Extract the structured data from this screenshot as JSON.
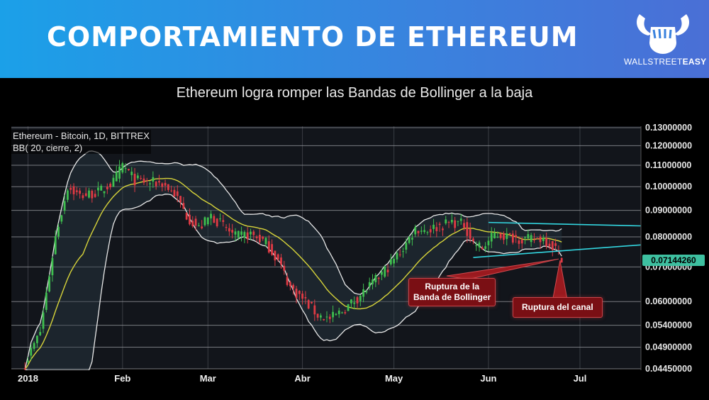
{
  "banner": {
    "title": "COMPORTAMIENTO DE ETHEREUM"
  },
  "logo": {
    "text_part1": "WALLSTREET",
    "text_part2": "EASY",
    "icon": "bull-fist-icon"
  },
  "subtitle": "Ethereum logra romper las Bandas de Bollinger a la baja",
  "legend": {
    "line1": "Ethereum - Bitcoin, 1D, BITTREX",
    "line2": "BB( 20, cierre, 2)"
  },
  "annotations": {
    "bollinger_break": {
      "line1": "Ruptura de la",
      "line2": "Banda de Bollinger"
    },
    "channel_break": "Ruptura del canal"
  },
  "colors": {
    "banner": "#2f8fe3",
    "up_candle": "#3fbf4f",
    "down_candle": "#e03a44",
    "middle_band": "#d7d43a",
    "outer_band": "#e8e8e8",
    "channel": "#33d6e0",
    "price_badge": "#3ec0a0",
    "annotation": "#7a0f14"
  },
  "chart_data": {
    "type": "candlestick",
    "title": "Ethereum - Bitcoin, 1D, BITTREX",
    "indicator": "BB( 20, cierre, 2)",
    "x_ticks": [
      "2018",
      "Feb",
      "Mar",
      "Abr",
      "May",
      "Jun",
      "Jul"
    ],
    "y_ticks": [
      "0.13000000",
      "0.12000000",
      "0.11000000",
      "0.10000000",
      "0.09000000",
      "0.08000000",
      "0.07000000",
      "0.06000000",
      "0.05400000",
      "0.04900000",
      "0.04450000"
    ],
    "last_price": "0.07144260",
    "close_path": [
      {
        "date": "2017-12-31",
        "close": 0.0455
      },
      {
        "date": "2018-01-05",
        "close": 0.0525
      },
      {
        "date": "2018-01-10",
        "close": 0.08
      },
      {
        "date": "2018-01-14",
        "close": 0.1
      },
      {
        "date": "2018-01-18",
        "close": 0.096
      },
      {
        "date": "2018-01-24",
        "close": 0.0975
      },
      {
        "date": "2018-01-29",
        "close": 0.102
      },
      {
        "date": "2018-02-01",
        "close": 0.11
      },
      {
        "date": "2018-02-05",
        "close": 0.103
      },
      {
        "date": "2018-02-09",
        "close": 0.102
      },
      {
        "date": "2018-02-14",
        "close": 0.1015
      },
      {
        "date": "2018-02-18",
        "close": 0.097
      },
      {
        "date": "2018-02-22",
        "close": 0.088
      },
      {
        "date": "2018-02-26",
        "close": 0.083
      },
      {
        "date": "2018-03-02",
        "close": 0.088
      },
      {
        "date": "2018-03-06",
        "close": 0.084
      },
      {
        "date": "2018-03-10",
        "close": 0.08
      },
      {
        "date": "2018-03-15",
        "close": 0.081
      },
      {
        "date": "2018-03-20",
        "close": 0.078
      },
      {
        "date": "2018-03-24",
        "close": 0.072
      },
      {
        "date": "2018-03-28",
        "close": 0.064
      },
      {
        "date": "2018-04-02",
        "close": 0.06
      },
      {
        "date": "2018-04-06",
        "close": 0.0565
      },
      {
        "date": "2018-04-10",
        "close": 0.0555
      },
      {
        "date": "2018-04-14",
        "close": 0.0575
      },
      {
        "date": "2018-04-19",
        "close": 0.061
      },
      {
        "date": "2018-04-24",
        "close": 0.065
      },
      {
        "date": "2018-04-29",
        "close": 0.07
      },
      {
        "date": "2018-05-04",
        "close": 0.076
      },
      {
        "date": "2018-05-08",
        "close": 0.083
      },
      {
        "date": "2018-05-12",
        "close": 0.0825
      },
      {
        "date": "2018-05-16",
        "close": 0.084
      },
      {
        "date": "2018-05-20",
        "close": 0.0855
      },
      {
        "date": "2018-05-24",
        "close": 0.0845
      },
      {
        "date": "2018-05-27",
        "close": 0.078
      },
      {
        "date": "2018-05-30",
        "close": 0.076
      },
      {
        "date": "2018-06-03",
        "close": 0.081
      },
      {
        "date": "2018-06-08",
        "close": 0.08
      },
      {
        "date": "2018-06-14",
        "close": 0.079
      },
      {
        "date": "2018-06-19",
        "close": 0.0795
      },
      {
        "date": "2018-06-23",
        "close": 0.076
      },
      {
        "date": "2018-06-25",
        "close": 0.0714
      }
    ],
    "ylim": [
      0.0445,
      0.13
    ],
    "log_scale": true,
    "grid": true
  }
}
